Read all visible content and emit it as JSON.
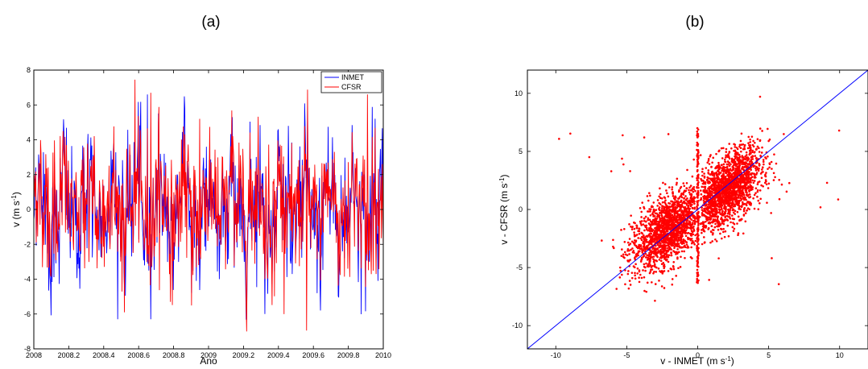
{
  "chart_data": [
    {
      "type": "line",
      "panel_label": "(a)",
      "xlabel": "Ano",
      "ylabel": "v (m s",
      "ylabel_sup": "-1",
      "ylabel_end": ")",
      "xlim": [
        2008,
        2010
      ],
      "ylim": [
        -8,
        8
      ],
      "xticks": [
        2008,
        2008.2,
        2008.4,
        2008.6,
        2008.8,
        2009,
        2009.2,
        2009.4,
        2009.6,
        2009.8,
        2010
      ],
      "xtick_labels": [
        "2008",
        "2008.2",
        "2008.4",
        "2008.6",
        "2008.8",
        "2009",
        "2009.2",
        "2009.4",
        "2009.6",
        "2009.8",
        "2010"
      ],
      "yticks": [
        -8,
        -6,
        -4,
        -2,
        0,
        2,
        4,
        6,
        8
      ],
      "ytick_labels": [
        "-8",
        "-6",
        "-4",
        "-2",
        "0",
        "2",
        "4",
        "6",
        "8"
      ],
      "legend_position": "top-right",
      "series": [
        {
          "name": "INMET",
          "color": "#0000ff"
        },
        {
          "name": "CFSR",
          "color": "#ff0000"
        }
      ]
    },
    {
      "type": "scatter",
      "panel_label": "(b)",
      "xlabel": "v - INMET (m s",
      "xlabel_sup": "-1",
      "xlabel_end": ")",
      "ylabel": "v - CFSR (m s",
      "ylabel_sup": "-1",
      "ylabel_end": ")",
      "xlim": [
        -12,
        12
      ],
      "ylim": [
        -12,
        12
      ],
      "xticks": [
        -10,
        -5,
        0,
        5,
        10
      ],
      "xtick_labels": [
        "-10",
        "-5",
        "0",
        "5",
        "10"
      ],
      "yticks": [
        -10,
        -5,
        0,
        5,
        10
      ],
      "ytick_labels": [
        "-10",
        "-5",
        "0",
        "5",
        "10"
      ],
      "point_color": "#ff0000",
      "reference_line": {
        "slope": 1,
        "intercept": 0,
        "color": "#0000ff"
      }
    }
  ]
}
